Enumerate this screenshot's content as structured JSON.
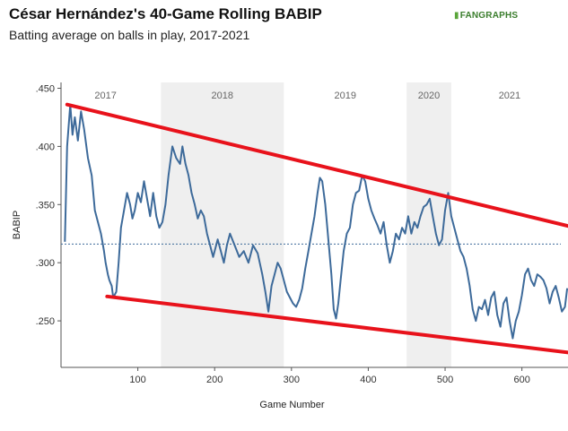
{
  "title": "César Hernández's 40-Game Rolling BABIP",
  "subtitle": "Batting average on balls in play, 2017-2021",
  "logo_text": "FANGRAPHS",
  "chart_data": {
    "type": "line",
    "xlabel": "Game Number",
    "ylabel": "BABIP",
    "xlim": [
      0,
      660
    ],
    "ylim": [
      0.21,
      0.455
    ],
    "x_ticks": [
      100,
      200,
      300,
      400,
      500,
      600
    ],
    "x_tick_labels": [
      "100",
      "200",
      "300",
      "400",
      "500",
      "600"
    ],
    "y_ticks": [
      0.25,
      0.3,
      0.35,
      0.4,
      0.45
    ],
    "y_tick_labels": [
      ".250",
      ".300",
      ".350",
      ".400",
      ".450"
    ],
    "seasons": [
      {
        "label": "2017",
        "start": 0,
        "end": 130,
        "shaded": false
      },
      {
        "label": "2018",
        "start": 130,
        "end": 290,
        "shaded": true
      },
      {
        "label": "2019",
        "start": 290,
        "end": 450,
        "shaded": false
      },
      {
        "label": "2020",
        "start": 450,
        "end": 508,
        "shaded": true
      },
      {
        "label": "2021",
        "start": 508,
        "end": 660,
        "shaded": false
      }
    ],
    "reference_line": {
      "y": 0.316,
      "style": "dotted"
    },
    "trend_lines": [
      {
        "points": [
          [
            8,
            0.436
          ],
          [
            720,
            0.322
          ]
        ],
        "color": "#e8121b"
      },
      {
        "points": [
          [
            60,
            0.271
          ],
          [
            720,
            0.218
          ]
        ],
        "color": "#e8121b"
      }
    ],
    "series": [
      {
        "color": "#3d6a9a",
        "points": [
          [
            5,
            0.318
          ],
          [
            8,
            0.4
          ],
          [
            12,
            0.436
          ],
          [
            15,
            0.41
          ],
          [
            18,
            0.425
          ],
          [
            22,
            0.405
          ],
          [
            26,
            0.43
          ],
          [
            30,
            0.415
          ],
          [
            35,
            0.39
          ],
          [
            40,
            0.375
          ],
          [
            44,
            0.345
          ],
          [
            48,
            0.335
          ],
          [
            52,
            0.325
          ],
          [
            56,
            0.31
          ],
          [
            58,
            0.3
          ],
          [
            61,
            0.29
          ],
          [
            63,
            0.285
          ],
          [
            66,
            0.28
          ],
          [
            68,
            0.27
          ],
          [
            72,
            0.275
          ],
          [
            75,
            0.3
          ],
          [
            78,
            0.33
          ],
          [
            82,
            0.345
          ],
          [
            86,
            0.36
          ],
          [
            90,
            0.35
          ],
          [
            93,
            0.338
          ],
          [
            96,
            0.345
          ],
          [
            100,
            0.36
          ],
          [
            104,
            0.352
          ],
          [
            108,
            0.37
          ],
          [
            112,
            0.355
          ],
          [
            116,
            0.34
          ],
          [
            120,
            0.36
          ],
          [
            124,
            0.34
          ],
          [
            128,
            0.33
          ],
          [
            132,
            0.335
          ],
          [
            136,
            0.35
          ],
          [
            140,
            0.375
          ],
          [
            145,
            0.4
          ],
          [
            150,
            0.39
          ],
          [
            155,
            0.385
          ],
          [
            158,
            0.4
          ],
          [
            162,
            0.385
          ],
          [
            166,
            0.375
          ],
          [
            170,
            0.36
          ],
          [
            174,
            0.35
          ],
          [
            178,
            0.338
          ],
          [
            182,
            0.345
          ],
          [
            186,
            0.34
          ],
          [
            190,
            0.325
          ],
          [
            194,
            0.315
          ],
          [
            198,
            0.305
          ],
          [
            204,
            0.32
          ],
          [
            208,
            0.31
          ],
          [
            212,
            0.3
          ],
          [
            216,
            0.315
          ],
          [
            220,
            0.325
          ],
          [
            226,
            0.315
          ],
          [
            232,
            0.305
          ],
          [
            238,
            0.31
          ],
          [
            244,
            0.3
          ],
          [
            250,
            0.315
          ],
          [
            256,
            0.308
          ],
          [
            262,
            0.29
          ],
          [
            266,
            0.275
          ],
          [
            270,
            0.258
          ],
          [
            274,
            0.28
          ],
          [
            278,
            0.29
          ],
          [
            282,
            0.3
          ],
          [
            286,
            0.295
          ],
          [
            290,
            0.285
          ],
          [
            294,
            0.275
          ],
          [
            298,
            0.27
          ],
          [
            302,
            0.265
          ],
          [
            306,
            0.262
          ],
          [
            310,
            0.268
          ],
          [
            314,
            0.278
          ],
          [
            318,
            0.295
          ],
          [
            322,
            0.31
          ],
          [
            326,
            0.325
          ],
          [
            330,
            0.34
          ],
          [
            334,
            0.36
          ],
          [
            337,
            0.373
          ],
          [
            340,
            0.37
          ],
          [
            344,
            0.35
          ],
          [
            348,
            0.32
          ],
          [
            352,
            0.29
          ],
          [
            355,
            0.26
          ],
          [
            358,
            0.252
          ],
          [
            361,
            0.265
          ],
          [
            364,
            0.285
          ],
          [
            368,
            0.31
          ],
          [
            372,
            0.325
          ],
          [
            376,
            0.33
          ],
          [
            380,
            0.35
          ],
          [
            384,
            0.36
          ],
          [
            388,
            0.362
          ],
          [
            392,
            0.375
          ],
          [
            396,
            0.37
          ],
          [
            400,
            0.355
          ],
          [
            404,
            0.345
          ],
          [
            408,
            0.338
          ],
          [
            412,
            0.332
          ],
          [
            416,
            0.325
          ],
          [
            420,
            0.335
          ],
          [
            424,
            0.315
          ],
          [
            428,
            0.3
          ],
          [
            432,
            0.31
          ],
          [
            436,
            0.325
          ],
          [
            440,
            0.32
          ],
          [
            444,
            0.33
          ],
          [
            448,
            0.325
          ],
          [
            452,
            0.34
          ],
          [
            456,
            0.325
          ],
          [
            460,
            0.335
          ],
          [
            464,
            0.33
          ],
          [
            468,
            0.34
          ],
          [
            472,
            0.348
          ],
          [
            476,
            0.35
          ],
          [
            480,
            0.355
          ],
          [
            484,
            0.34
          ],
          [
            488,
            0.325
          ],
          [
            492,
            0.315
          ],
          [
            496,
            0.32
          ],
          [
            500,
            0.345
          ],
          [
            504,
            0.36
          ],
          [
            508,
            0.34
          ],
          [
            512,
            0.33
          ],
          [
            516,
            0.32
          ],
          [
            520,
            0.31
          ],
          [
            524,
            0.305
          ],
          [
            528,
            0.295
          ],
          [
            532,
            0.28
          ],
          [
            536,
            0.26
          ],
          [
            540,
            0.25
          ],
          [
            544,
            0.262
          ],
          [
            548,
            0.26
          ],
          [
            552,
            0.268
          ],
          [
            556,
            0.255
          ],
          [
            560,
            0.27
          ],
          [
            564,
            0.275
          ],
          [
            568,
            0.255
          ],
          [
            572,
            0.245
          ],
          [
            576,
            0.265
          ],
          [
            580,
            0.27
          ],
          [
            584,
            0.25
          ],
          [
            588,
            0.235
          ],
          [
            592,
            0.25
          ],
          [
            596,
            0.258
          ],
          [
            600,
            0.272
          ],
          [
            604,
            0.29
          ],
          [
            608,
            0.295
          ],
          [
            612,
            0.285
          ],
          [
            616,
            0.28
          ],
          [
            620,
            0.29
          ],
          [
            624,
            0.288
          ],
          [
            628,
            0.285
          ],
          [
            632,
            0.278
          ],
          [
            636,
            0.265
          ],
          [
            640,
            0.275
          ],
          [
            644,
            0.28
          ],
          [
            648,
            0.27
          ],
          [
            652,
            0.258
          ],
          [
            656,
            0.262
          ],
          [
            659,
            0.278
          ]
        ]
      }
    ]
  }
}
